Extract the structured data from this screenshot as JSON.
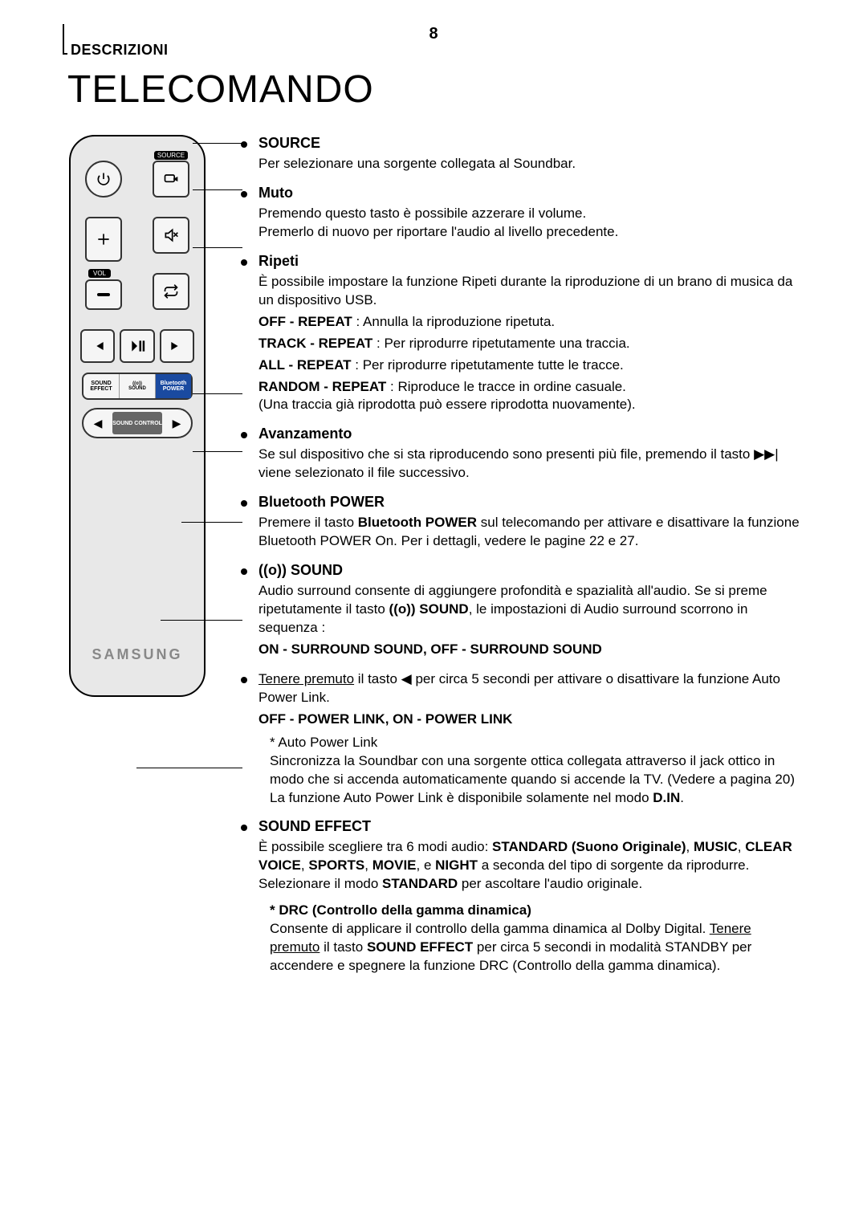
{
  "section_label": "DESCRIZIONI",
  "page_title": "TELECOMANDO",
  "page_number": "8",
  "remote": {
    "source_label": "SOURCE",
    "vol_label": "VOL",
    "fn_sound_effect": "SOUND EFFECT",
    "fn_sound": "SOUND",
    "fn_bt_power": "Bluetooth POWER",
    "ctrl_mid": "SOUND CONTROL",
    "brand": "SAMSUNG"
  },
  "descriptions": [
    {
      "heading": "SOURCE",
      "body": "Per selezionare una sorgente collegata al Soundbar."
    },
    {
      "heading": "Muto",
      "body": "Premendo questo tasto è possibile azzerare il volume.\nPremerlo di nuovo per riportare l'audio al livello precedente."
    },
    {
      "heading": "Ripeti",
      "body": "È possibile impostare la funzione Ripeti durante la riproduzione di un brano di musica da un dispositivo USB.",
      "extras": [
        "<b>OFF - REPEAT</b> : Annulla la riproduzione ripetuta.",
        "<b>TRACK - REPEAT</b> : Per riprodurre ripetutamente una traccia.",
        "<b>ALL - REPEAT</b> : Per riprodurre ripetutamente tutte le tracce.",
        "<b>RANDOM - REPEAT</b> : Riproduce le tracce in ordine casuale.\n(Una traccia già riprodotta può essere riprodotta nuovamente)."
      ]
    },
    {
      "heading": "Avanzamento",
      "body": "Se sul dispositivo che si sta riproducendo sono presenti più file, premendo il tasto ▶▶| viene selezionato il file successivo."
    },
    {
      "heading": "Bluetooth POWER",
      "body": "Premere il tasto <b>Bluetooth POWER</b> sul telecomando per attivare e disattivare la funzione Bluetooth POWER On. Per i dettagli, vedere le pagine 22 e 27."
    },
    {
      "heading": "((o)) SOUND",
      "body": "Audio surround consente di aggiungere profondità e spazialità all'audio. Se si preme ripetutamente il tasto <b>((o)) SOUND</b>, le impostazioni di Audio surround scorrono in sequenza :",
      "post_bold": "ON - SURROUND SOUND, OFF - SURROUND SOUND"
    },
    {
      "no_heading": true,
      "body": "<u>Tenere premuto</u> il tasto ◀ per circa 5 secondi per attivare o disattivare la funzione Auto Power Link.",
      "post_bold": "OFF - POWER LINK, ON - POWER LINK",
      "notes": [
        "* Auto Power Link\nSincronizza la Soundbar con una sorgente ottica collegata attraverso il jack ottico in modo che si accenda automaticamente quando si accende la TV. (Vedere a pagina 20)\nLa funzione Auto Power Link è disponibile solamente nel modo <b>D.IN</b>."
      ]
    },
    {
      "heading": "SOUND EFFECT",
      "body": "È possibile scegliere tra 6 modi audio: <b>STANDARD (Suono Originale)</b>, <b>MUSIC</b>, <b>CLEAR VOICE</b>, <b>SPORTS</b>, <b>MOVIE</b>, e <b>NIGHT</b> a seconda del tipo di sorgente da riprodurre. Selezionare il modo <b>STANDARD</b> per ascoltare l'audio originale.",
      "sub_heading": "* DRC (Controllo della gamma dinamica)",
      "sub_body": "Consente di applicare il controllo della gamma dinamica al Dolby Digital. <u>Tenere premuto</u> il tasto <b>SOUND EFFECT</b> per circa 5 secondi in modalità STANDBY per accendere e spegnere la funzione DRC (Controllo della gamma dinamica)."
    }
  ]
}
